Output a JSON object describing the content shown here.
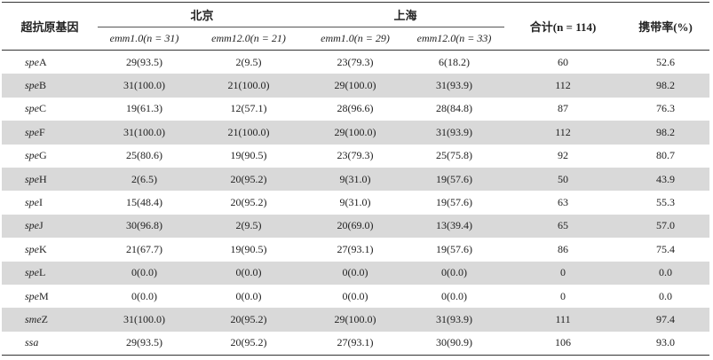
{
  "header": {
    "gene": "超抗原基因",
    "beijing": "北京",
    "shanghai": "上海",
    "total": "合计(n = 114)",
    "rate": "携带率(%)",
    "subgroups": [
      "emm1.0(n = 31)",
      "emm12.0(n = 21)",
      "emm1.0(n = 29)",
      "emm12.0(n = 33)"
    ]
  },
  "table": {
    "rows": [
      {
        "gene": {
          "italic": "spe",
          "plain": "A"
        },
        "cells": [
          "29(93.5)",
          "2(9.5)",
          "23(79.3)",
          "6(18.2)",
          "60",
          "52.6"
        ]
      },
      {
        "gene": {
          "italic": "spe",
          "plain": "B"
        },
        "cells": [
          "31(100.0)",
          "21(100.0)",
          "29(100.0)",
          "31(93.9)",
          "112",
          "98.2"
        ]
      },
      {
        "gene": {
          "italic": "spe",
          "plain": "C"
        },
        "cells": [
          "19(61.3)",
          "12(57.1)",
          "28(96.6)",
          "28(84.8)",
          "87",
          "76.3"
        ]
      },
      {
        "gene": {
          "italic": "spe",
          "plain": "F"
        },
        "cells": [
          "31(100.0)",
          "21(100.0)",
          "29(100.0)",
          "31(93.9)",
          "112",
          "98.2"
        ]
      },
      {
        "gene": {
          "italic": "spe",
          "plain": "G"
        },
        "cells": [
          "25(80.6)",
          "19(90.5)",
          "23(79.3)",
          "25(75.8)",
          "92",
          "80.7"
        ]
      },
      {
        "gene": {
          "italic": "spe",
          "plain": "H"
        },
        "cells": [
          "2(6.5)",
          "20(95.2)",
          "9(31.0)",
          "19(57.6)",
          "50",
          "43.9"
        ]
      },
      {
        "gene": {
          "italic": "spe",
          "plain": "I"
        },
        "cells": [
          "15(48.4)",
          "20(95.2)",
          "9(31.0)",
          "19(57.6)",
          "63",
          "55.3"
        ]
      },
      {
        "gene": {
          "italic": "spe",
          "plain": "J"
        },
        "cells": [
          "30(96.8)",
          "2(9.5)",
          "20(69.0)",
          "13(39.4)",
          "65",
          "57.0"
        ]
      },
      {
        "gene": {
          "italic": "spe",
          "plain": "K"
        },
        "cells": [
          "21(67.7)",
          "19(90.5)",
          "27(93.1)",
          "19(57.6)",
          "86",
          "75.4"
        ]
      },
      {
        "gene": {
          "italic": "spe",
          "plain": "L"
        },
        "cells": [
          "0(0.0)",
          "0(0.0)",
          "0(0.0)",
          "0(0.0)",
          "0",
          "0.0"
        ]
      },
      {
        "gene": {
          "italic": "spe",
          "plain": "M"
        },
        "cells": [
          "0(0.0)",
          "0(0.0)",
          "0(0.0)",
          "0(0.0)",
          "0",
          "0.0"
        ]
      },
      {
        "gene": {
          "italic": "sme",
          "plain": "Z"
        },
        "cells": [
          "31(100.0)",
          "20(95.2)",
          "29(100.0)",
          "31(93.9)",
          "111",
          "97.4"
        ]
      },
      {
        "gene": {
          "italic": "ssa"
        },
        "cells": [
          "29(93.5)",
          "20(95.2)",
          "27(93.1)",
          "30(90.9)",
          "106",
          "93.0"
        ]
      }
    ]
  }
}
